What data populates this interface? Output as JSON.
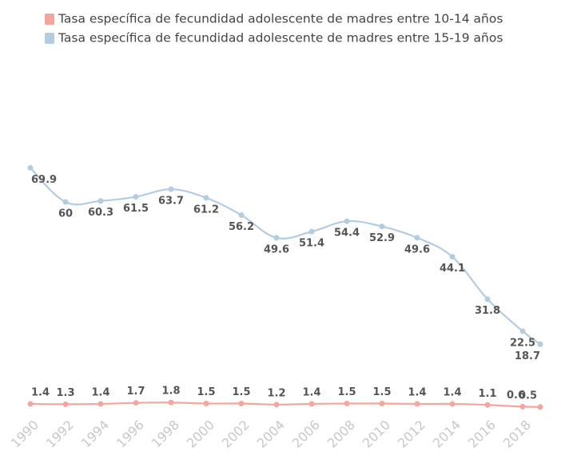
{
  "chart_data": {
    "type": "line",
    "x": [
      1990,
      1992,
      1994,
      1996,
      1998,
      2000,
      2002,
      2004,
      2006,
      2008,
      2010,
      2012,
      2014,
      2016,
      2018,
      2019
    ],
    "series": [
      {
        "name": "Tasa específica de fecundidad adolescente de madres entre 10-14 años",
        "color": "#f4a69d",
        "values": [
          1.4,
          1.3,
          1.4,
          1.7,
          1.8,
          1.5,
          1.5,
          1.2,
          1.4,
          1.5,
          1.5,
          1.4,
          1.4,
          1.1,
          0.6,
          0.5
        ]
      },
      {
        "name": "Tasa específica de fecundidad adolescente de madres entre 15-19 años",
        "color": "#b3cce2",
        "values": [
          69.9,
          60,
          60.3,
          61.5,
          63.7,
          61.2,
          56.2,
          49.6,
          51.4,
          54.4,
          52.9,
          49.6,
          44.1,
          31.8,
          22.5,
          18.7
        ]
      }
    ],
    "xlim": [
      1990,
      2019
    ],
    "xticks": [
      1990,
      1992,
      1994,
      1996,
      1998,
      2000,
      2002,
      2004,
      2006,
      2008,
      2010,
      2012,
      2014,
      2016,
      2018
    ],
    "ylim": [
      0,
      80
    ],
    "legend": "top-left"
  }
}
